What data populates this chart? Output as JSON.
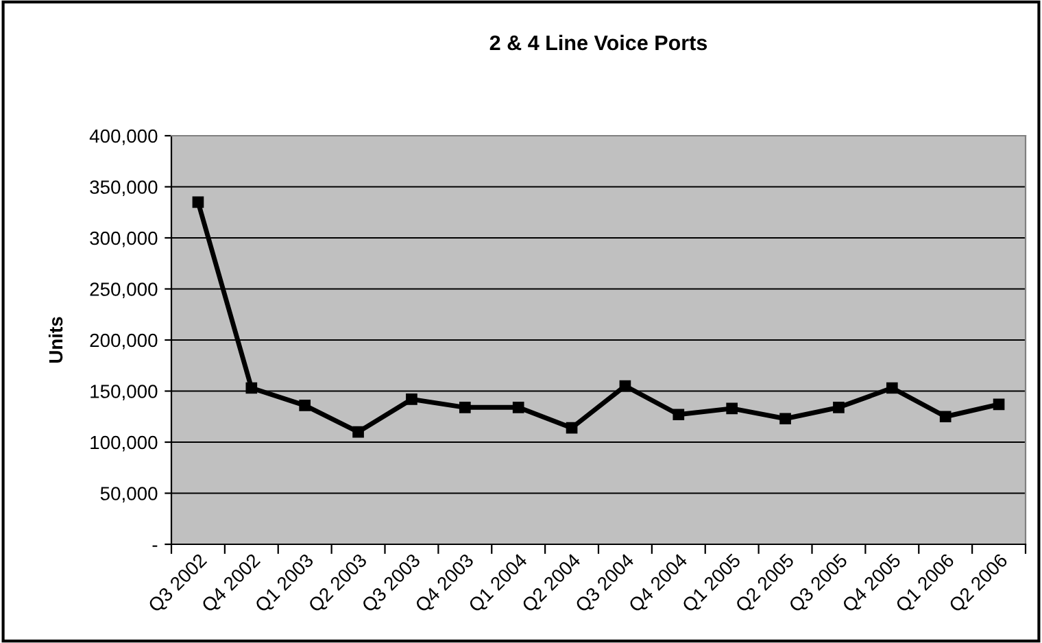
{
  "chart_data": {
    "type": "line",
    "title": "2 & 4 Line Voice Ports",
    "ylabel": "Units",
    "categories": [
      "Q3 2002",
      "Q4 2002",
      "Q1 2003",
      "Q2 2003",
      "Q3 2003",
      "Q4 2003",
      "Q1 2004",
      "Q2 2004",
      "Q3 2004",
      "Q4 2004",
      "Q1 2005",
      "Q2 2005",
      "Q3 2005",
      "Q4 2005",
      "Q1 2006",
      "Q2 2006"
    ],
    "series": [
      {
        "color": "#000000",
        "values": [
          335000,
          153000,
          136000,
          110000,
          142000,
          134000,
          134000,
          114000,
          155000,
          127000,
          133000,
          123000,
          134000,
          153000,
          125000,
          137000
        ]
      }
    ],
    "ylim": [
      0,
      400000
    ],
    "yticks": [
      {
        "value": 0,
        "label": "-"
      },
      {
        "value": 50000,
        "label": "50,000"
      },
      {
        "value": 100000,
        "label": "100,000"
      },
      {
        "value": 150000,
        "label": "150,000"
      },
      {
        "value": 200000,
        "label": "200,000"
      },
      {
        "value": 250000,
        "label": "250,000"
      },
      {
        "value": 300000,
        "label": "300,000"
      },
      {
        "value": 350000,
        "label": "350,000"
      },
      {
        "value": 400000,
        "label": "400,000"
      }
    ],
    "grid": "y",
    "marker": "square",
    "line_style": "solid"
  }
}
